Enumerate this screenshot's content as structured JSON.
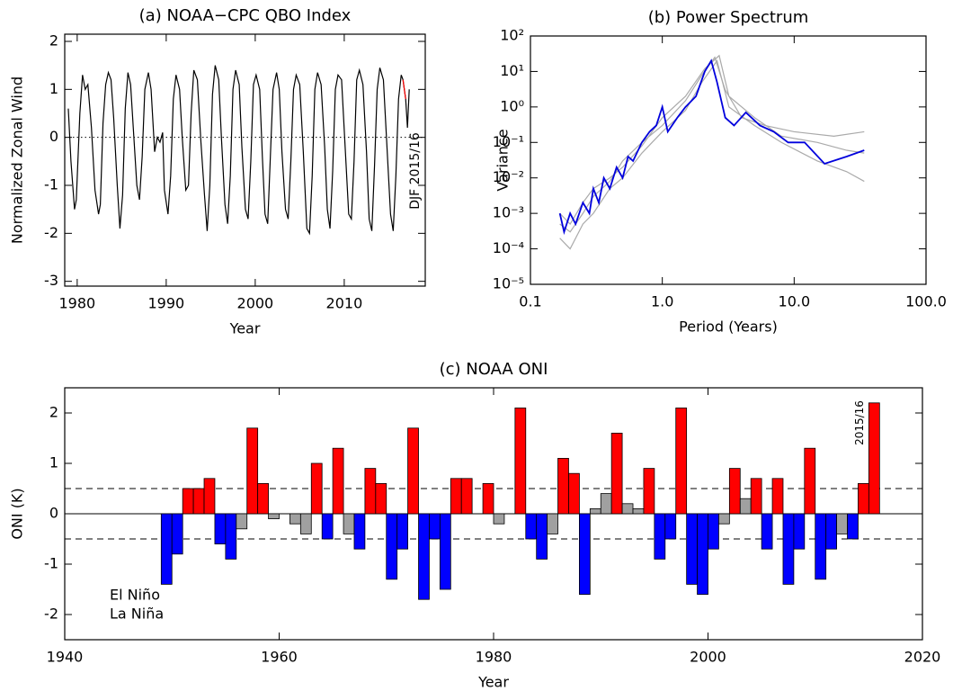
{
  "chart_data": [
    {
      "type": "line",
      "title": "(a) NOAA−CPC QBO Index",
      "x_label": "Year",
      "y_label": "Normalized Zonal Wind",
      "xlim": [
        1978.6,
        2019.1
      ],
      "ylim": [
        -3.1,
        2.15
      ],
      "xticks": [
        1980,
        1990,
        2000,
        2010
      ],
      "yticks": [
        -3,
        -2,
        -1,
        0,
        1,
        2
      ],
      "zero_line": "dotted",
      "annotation": "DJF 2015/16",
      "annotation_color": "#ff0000",
      "series": [
        {
          "color": "#000000",
          "x": [
            1979.0,
            1979.3,
            1979.7,
            1979.9,
            1980.3,
            1980.6,
            1980.9,
            1981.2,
            1981.6,
            1982.0,
            1982.4,
            1982.6,
            1982.9,
            1983.2,
            1983.5,
            1983.8,
            1984.1,
            1984.5,
            1984.8,
            1985.1,
            1985.4,
            1985.7,
            1986.0,
            1986.3,
            1986.7,
            1987.0,
            1987.3,
            1987.6,
            1988.0,
            1988.3,
            1988.7,
            1989.0,
            1989.3,
            1989.6,
            1989.8,
            1990.2,
            1990.5,
            1990.8,
            1991.1,
            1991.5,
            1991.8,
            1992.2,
            1992.5,
            1992.8,
            1993.1,
            1993.5,
            1993.9,
            1994.3,
            1994.6,
            1994.9,
            1995.2,
            1995.5,
            1995.9,
            1996.2,
            1996.6,
            1996.9,
            1997.2,
            1997.5,
            1997.8,
            1998.2,
            1998.5,
            1998.9,
            1999.2,
            1999.5,
            1999.8,
            2000.1,
            2000.5,
            2000.8,
            2001.1,
            2001.4,
            2001.7,
            2002.0,
            2002.4,
            2002.7,
            2003.0,
            2003.4,
            2003.7,
            2004.0,
            2004.3,
            2004.6,
            2005.0,
            2005.4,
            2005.8,
            2006.1,
            2006.4,
            2006.7,
            2007.0,
            2007.4,
            2007.8,
            2008.1,
            2008.4,
            2008.7,
            2009.0,
            2009.3,
            2009.7,
            2010.1,
            2010.5,
            2010.8,
            2011.1,
            2011.4,
            2011.7,
            2012.1,
            2012.5,
            2012.8,
            2013.1,
            2013.4,
            2013.7,
            2014.0,
            2014.4,
            2014.8,
            2015.2,
            2015.5,
            2015.8,
            2016.1,
            2016.4,
            2016.6,
            2016.9,
            2017.1,
            2017.3
          ],
          "values": [
            0.6,
            -0.5,
            -1.5,
            -1.3,
            0.5,
            1.3,
            1.0,
            1.1,
            0.2,
            -1.1,
            -1.6,
            -1.4,
            0.3,
            1.1,
            1.35,
            1.2,
            0.4,
            -1.0,
            -1.9,
            -1.2,
            0.6,
            1.35,
            1.1,
            0.2,
            -1.0,
            -1.3,
            -0.4,
            1.0,
            1.35,
            1.0,
            -0.3,
            0.0,
            -0.1,
            0.1,
            -1.1,
            -1.6,
            -0.8,
            0.8,
            1.3,
            1.0,
            0.0,
            -1.1,
            -1.0,
            0.5,
            1.4,
            1.2,
            -0.1,
            -1.2,
            -1.95,
            -1.0,
            0.9,
            1.5,
            1.2,
            0.0,
            -1.4,
            -1.8,
            -0.8,
            1.0,
            1.4,
            1.1,
            -0.2,
            -1.5,
            -1.7,
            -0.5,
            1.1,
            1.3,
            1.0,
            -0.4,
            -1.6,
            -1.8,
            -0.4,
            1.0,
            1.35,
            1.0,
            -0.3,
            -1.5,
            -1.7,
            -0.5,
            1.0,
            1.3,
            1.1,
            -0.3,
            -1.9,
            -2.0,
            -0.8,
            1.0,
            1.35,
            1.1,
            -0.2,
            -1.5,
            -1.9,
            -0.7,
            1.0,
            1.3,
            1.2,
            -0.2,
            -1.6,
            -1.7,
            -0.5,
            1.2,
            1.4,
            1.1,
            -0.3,
            -1.7,
            -1.95,
            -0.6,
            1.0,
            1.45,
            1.2,
            -0.2,
            -1.6,
            -1.95,
            -0.8,
            0.8,
            1.3,
            1.2,
            0.8,
            0.2,
            1.0
          ]
        },
        {
          "color": "#ff0000",
          "x": [
            2016.6,
            2016.75,
            2016.9
          ],
          "values": [
            1.2,
            1.0,
            0.8
          ]
        }
      ]
    },
    {
      "type": "line",
      "title": "(b) Power Spectrum",
      "x_label": "Period (Years)",
      "y_label": "Variance",
      "xlog": true,
      "ylog": true,
      "xlim": [
        0.1,
        100
      ],
      "ylim": [
        1e-05,
        100
      ],
      "xticks": [
        0.1,
        {
          "value": 1,
          "label": "1.0"
        },
        {
          "value": 10,
          "label": "10.0"
        },
        {
          "value": 100,
          "label": "100.0"
        }
      ],
      "yticks": [
        {
          "value": 100,
          "label": "10²"
        },
        {
          "value": 10,
          "label": "10¹"
        },
        {
          "value": 1,
          "label": "10⁰"
        },
        {
          "value": 0.1,
          "label": "10⁻¹"
        },
        {
          "value": 0.01,
          "label": "10⁻²"
        },
        {
          "value": 0.001,
          "label": "10⁻³"
        },
        {
          "value": 0.0001,
          "label": "10⁻⁴"
        },
        {
          "value": 1e-05,
          "label": "10⁻⁵"
        }
      ],
      "series": [
        {
          "color": "#aaaaaa",
          "x": [
            0.167,
            0.2,
            0.25,
            0.3,
            0.4,
            0.5,
            0.7,
            1.0,
            1.5,
            2.0,
            2.5,
            3.0,
            4,
            6,
            10,
            20,
            34
          ],
          "values": [
            0.0005,
            0.0003,
            0.001,
            0.003,
            0.008,
            0.03,
            0.1,
            0.3,
            1.5,
            8,
            25,
            3,
            0.5,
            0.3,
            0.2,
            0.15,
            0.2
          ]
        },
        {
          "color": "#aaaaaa",
          "x": [
            0.167,
            0.2,
            0.25,
            0.3,
            0.4,
            0.5,
            0.7,
            1.0,
            1.5,
            2.0,
            2.6,
            3.2,
            5,
            8,
            15,
            25,
            34
          ],
          "values": [
            0.0002,
            0.0001,
            0.0005,
            0.001,
            0.005,
            0.01,
            0.05,
            0.2,
            0.8,
            5,
            20,
            1,
            0.3,
            0.1,
            0.03,
            0.015,
            0.008
          ]
        },
        {
          "color": "#aaaaaa",
          "x": [
            0.167,
            0.2,
            0.25,
            0.3,
            0.4,
            0.5,
            0.7,
            1.0,
            1.5,
            2.1,
            2.7,
            3.2,
            5,
            8,
            15,
            25,
            34
          ],
          "values": [
            0.001,
            0.0005,
            0.002,
            0.005,
            0.01,
            0.02,
            0.08,
            0.5,
            2,
            12,
            28,
            2,
            0.5,
            0.15,
            0.1,
            0.06,
            0.05
          ]
        },
        {
          "color": "#0000dd",
          "x": [
            0.167,
            0.18,
            0.2,
            0.22,
            0.25,
            0.28,
            0.3,
            0.33,
            0.36,
            0.4,
            0.45,
            0.5,
            0.55,
            0.6,
            0.7,
            0.8,
            0.9,
            1.0,
            1.1,
            1.3,
            1.5,
            1.8,
            2.1,
            2.35,
            2.6,
            3.0,
            3.5,
            4.3,
            5.5,
            7,
            9,
            12,
            17,
            25,
            34
          ],
          "values": [
            0.001,
            0.0003,
            0.001,
            0.0005,
            0.002,
            0.001,
            0.005,
            0.002,
            0.01,
            0.005,
            0.02,
            0.01,
            0.04,
            0.03,
            0.1,
            0.2,
            0.3,
            1.0,
            0.2,
            0.5,
            1.0,
            2.0,
            10,
            20,
            5,
            0.5,
            0.3,
            0.7,
            0.3,
            0.2,
            0.1,
            0.1,
            0.025,
            0.04,
            0.06
          ]
        }
      ]
    },
    {
      "type": "bar",
      "title": "(c) NOAA ONI",
      "x_label": "Year",
      "y_label": "ONI (K)",
      "xlim": [
        1940,
        2020
      ],
      "ylim": [
        -2.5,
        2.5
      ],
      "xticks": [
        1940,
        1960,
        1980,
        2000,
        2020
      ],
      "yticks": [
        -2,
        -1,
        0,
        1,
        2
      ],
      "zero_line": "solid",
      "reference_lines": [
        0.5,
        -0.5
      ],
      "annotation": "2015/16",
      "annotation_color": "#000000",
      "legend": [
        {
          "name": "El Niño",
          "color": "#ff0000"
        },
        {
          "name": "La Niña",
          "color": "#0000ff"
        }
      ],
      "legend_corner": "lower left",
      "x": [
        1949,
        1950,
        1951,
        1952,
        1953,
        1954,
        1955,
        1956,
        1957,
        1958,
        1959,
        1960,
        1961,
        1962,
        1963,
        1964,
        1965,
        1966,
        1967,
        1968,
        1969,
        1970,
        1971,
        1972,
        1973,
        1974,
        1975,
        1976,
        1977,
        1978,
        1979,
        1980,
        1981,
        1982,
        1983,
        1984,
        1985,
        1986,
        1987,
        1988,
        1989,
        1990,
        1991,
        1992,
        1993,
        1994,
        1995,
        1996,
        1997,
        1998,
        1999,
        2000,
        2001,
        2002,
        2003,
        2004,
        2005,
        2006,
        2007,
        2008,
        2009,
        2010,
        2011,
        2012,
        2013,
        2014,
        2015
      ],
      "values": [
        -1.4,
        -0.8,
        0.5,
        0.5,
        0.7,
        -0.6,
        -0.9,
        -0.3,
        1.7,
        0.6,
        -0.1,
        0,
        -0.2,
        -0.4,
        1.0,
        -0.5,
        1.3,
        -0.4,
        -0.7,
        0.9,
        0.6,
        -1.3,
        -0.7,
        1.7,
        -1.7,
        -0.5,
        -1.5,
        0.7,
        0.7,
        0,
        0.6,
        -0.2,
        0,
        2.1,
        -0.5,
        -0.9,
        -0.4,
        1.1,
        0.8,
        -1.6,
        0.1,
        0.4,
        1.6,
        0.2,
        0.1,
        0.9,
        -0.9,
        -0.5,
        2.1,
        -1.4,
        -1.6,
        -0.7,
        -0.2,
        0.9,
        0.3,
        0.7,
        -0.7,
        0.7,
        -1.4,
        -0.7,
        1.3,
        -1.3,
        -0.7,
        -0.4,
        -0.5,
        0.6,
        2.2
      ],
      "colors": [
        "#0000ff",
        "#0000ff",
        "#ff0000",
        "#ff0000",
        "#ff0000",
        "#0000ff",
        "#0000ff",
        "#a0a0a0",
        "#ff0000",
        "#ff0000",
        "#a0a0a0",
        "#a0a0a0",
        "#a0a0a0",
        "#a0a0a0",
        "#ff0000",
        "#0000ff",
        "#ff0000",
        "#a0a0a0",
        "#0000ff",
        "#ff0000",
        "#ff0000",
        "#0000ff",
        "#0000ff",
        "#ff0000",
        "#0000ff",
        "#0000ff",
        "#0000ff",
        "#ff0000",
        "#ff0000",
        "#a0a0a0",
        "#ff0000",
        "#a0a0a0",
        "#a0a0a0",
        "#ff0000",
        "#0000ff",
        "#0000ff",
        "#a0a0a0",
        "#ff0000",
        "#ff0000",
        "#0000ff",
        "#a0a0a0",
        "#a0a0a0",
        "#ff0000",
        "#a0a0a0",
        "#a0a0a0",
        "#ff0000",
        "#0000ff",
        "#0000ff",
        "#ff0000",
        "#0000ff",
        "#0000ff",
        "#0000ff",
        "#a0a0a0",
        "#ff0000",
        "#a0a0a0",
        "#ff0000",
        "#0000ff",
        "#ff0000",
        "#0000ff",
        "#0000ff",
        "#ff0000",
        "#0000ff",
        "#0000ff",
        "#a0a0a0",
        "#0000ff",
        "#ff0000",
        "#ff0000"
      ]
    }
  ]
}
